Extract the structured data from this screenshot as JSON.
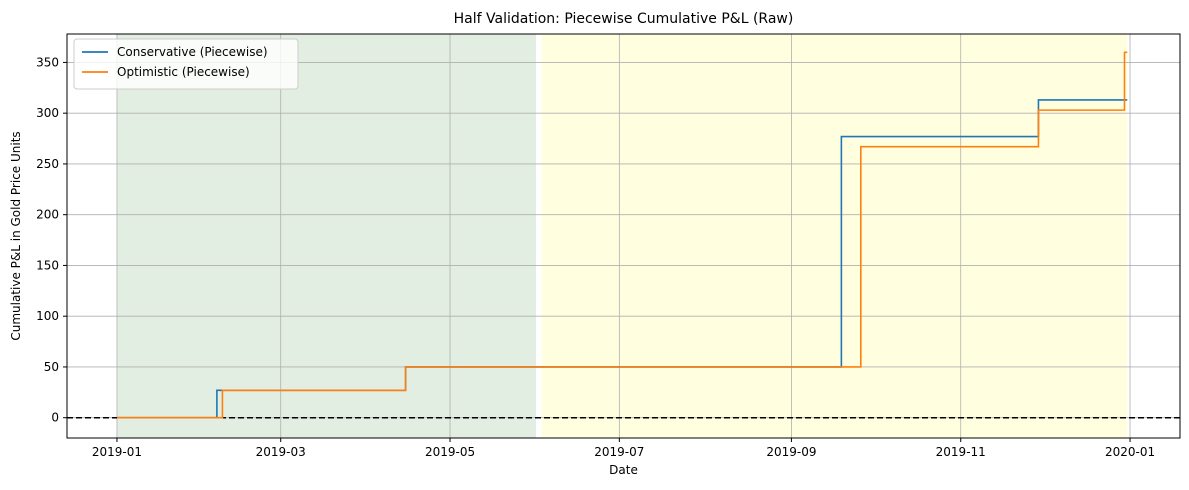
{
  "chart_data": {
    "type": "line",
    "title": "Half Validation: Piecewise Cumulative P&L (Raw)",
    "xlabel": "Date",
    "ylabel": "Cumulative P&L in Gold Price Units",
    "xlim": [
      "2018-12-14",
      "2020-01-19"
    ],
    "ylim": [
      -20,
      378
    ],
    "x_ticks": [
      "2019-01",
      "2019-03",
      "2019-05",
      "2019-07",
      "2019-09",
      "2019-11",
      "2020-01"
    ],
    "y_ticks": [
      0,
      50,
      100,
      150,
      200,
      250,
      300,
      350
    ],
    "grid": true,
    "legend_position": "top-left",
    "shaded_regions": [
      {
        "start": "2019-01-01",
        "end": "2019-06-01",
        "color": "#e3eee3"
      },
      {
        "start": "2019-06-03",
        "end": "2019-12-31",
        "color": "#ffffe0"
      }
    ],
    "reference_line": {
      "y": 0,
      "color": "#000000",
      "style": "dashed"
    },
    "series": [
      {
        "name": "Conservative (Piecewise)",
        "color": "#1f77b4",
        "step": true,
        "x": [
          "2019-01-01",
          "2019-02-06",
          "2019-04-15",
          "2019-09-19",
          "2019-11-29",
          "2019-12-30",
          "2019-12-31"
        ],
        "y": [
          0,
          27,
          50,
          277,
          313,
          313,
          313
        ]
      },
      {
        "name": "Optimistic (Piecewise)",
        "color": "#ff7f0e",
        "step": true,
        "x": [
          "2019-01-01",
          "2019-02-08",
          "2019-04-15",
          "2019-09-26",
          "2019-11-29",
          "2019-12-30",
          "2019-12-31"
        ],
        "y": [
          0,
          27,
          50,
          267,
          303,
          360,
          360
        ]
      }
    ]
  }
}
